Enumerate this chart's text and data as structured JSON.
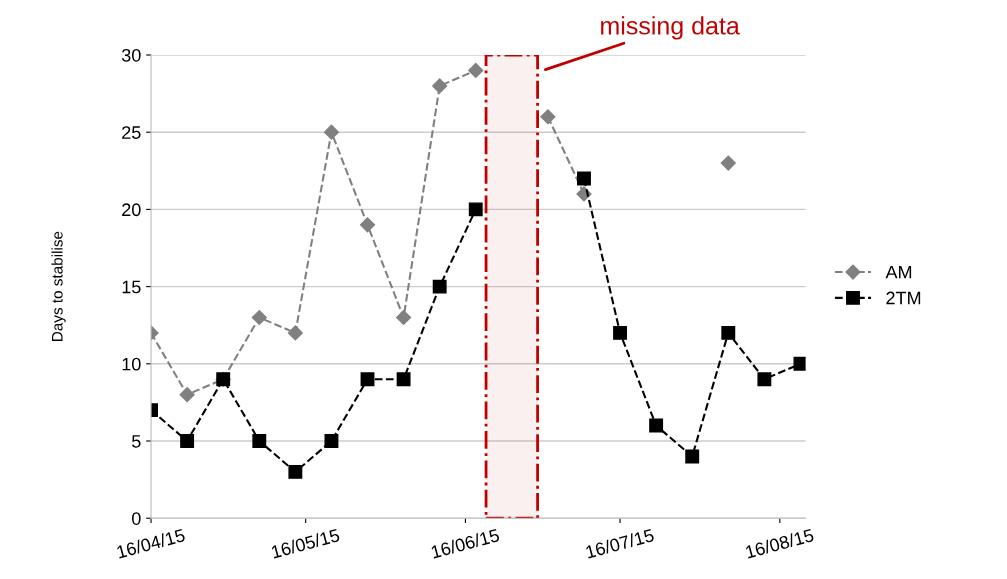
{
  "chart_data": {
    "type": "line",
    "ylabel": "Days to stabilise",
    "x": [
      "2015-04-16",
      "2015-04-23",
      "2015-04-30",
      "2015-05-07",
      "2015-05-14",
      "2015-05-21",
      "2015-05-28",
      "2015-06-04",
      "2015-06-11",
      "2015-06-18",
      "2015-06-25",
      "2015-07-02",
      "2015-07-09",
      "2015-07-16",
      "2015-07-23",
      "2015-07-30",
      "2015-08-06",
      "2015-08-13",
      "2015-08-20"
    ],
    "series": [
      {
        "name": "AM",
        "color": "#808080",
        "marker": "diamond",
        "values": [
          12,
          8,
          9,
          13,
          12,
          25,
          19,
          13,
          28,
          29,
          null,
          26,
          21,
          null,
          null,
          null,
          23,
          null,
          null
        ]
      },
      {
        "name": "2TM",
        "color": "#000000",
        "marker": "square",
        "values": [
          7,
          5,
          9,
          5,
          3,
          5,
          9,
          9,
          15,
          20,
          null,
          null,
          22,
          12,
          6,
          4,
          12,
          9,
          10
        ]
      }
    ],
    "xlim": [
      "2015-04-16",
      "2015-08-21"
    ],
    "xticks": [
      {
        "value": "2015-04-16",
        "label": "16/04/15"
      },
      {
        "value": "2015-05-16",
        "label": "16/05/15"
      },
      {
        "value": "2015-06-16",
        "label": "16/06/15"
      },
      {
        "value": "2015-07-16",
        "label": "16/07/15"
      },
      {
        "value": "2015-08-16",
        "label": "16/08/15"
      }
    ],
    "ylim": [
      0,
      30
    ],
    "yticks": [
      0,
      5,
      10,
      15,
      20,
      25,
      30
    ],
    "bands": [
      {
        "axis": "x",
        "from": "2015-06-20",
        "to": "2015-06-30",
        "label": "missing data",
        "color": "#c00000"
      }
    ],
    "grid": "y",
    "legend": "right",
    "line_style": "dashed"
  }
}
